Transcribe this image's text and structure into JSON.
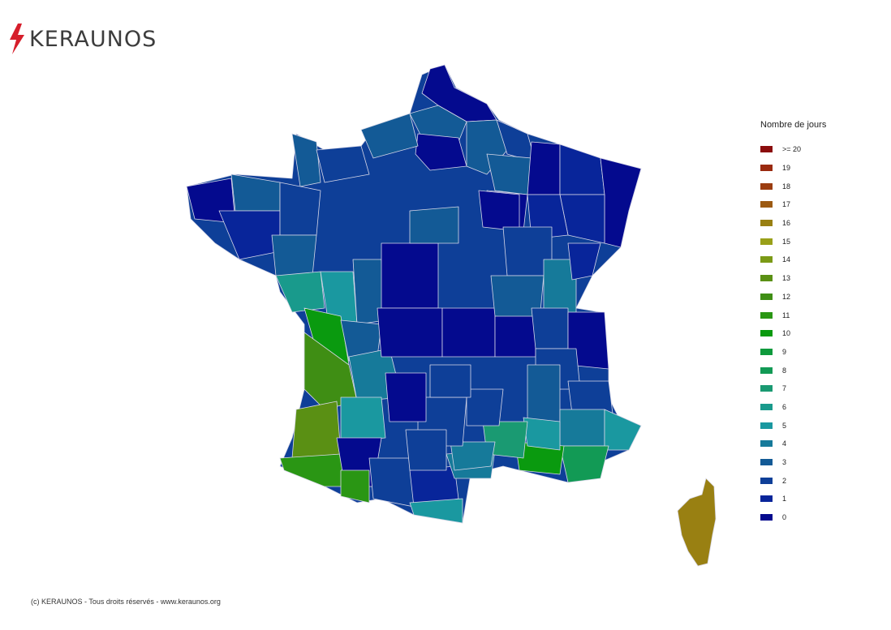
{
  "brand": {
    "name": "KERAUNOS",
    "accent": "#d61e2b"
  },
  "legend": {
    "title": "Nombre de jours",
    "items": [
      {
        "label": ">= 20",
        "color": "#8b0d0d"
      },
      {
        "label": "19",
        "color": "#9a2a0f"
      },
      {
        "label": "18",
        "color": "#9b3d10"
      },
      {
        "label": "17",
        "color": "#9c5a12"
      },
      {
        "label": "16",
        "color": "#998012"
      },
      {
        "label": "15",
        "color": "#99a019"
      },
      {
        "label": "14",
        "color": "#7b9a16"
      },
      {
        "label": "13",
        "color": "#5a9014"
      },
      {
        "label": "12",
        "color": "#3f8e14"
      },
      {
        "label": "11",
        "color": "#2a9614"
      },
      {
        "label": "10",
        "color": "#0a9a0f"
      },
      {
        "label": "9",
        "color": "#0e9a3c"
      },
      {
        "label": "8",
        "color": "#129a55"
      },
      {
        "label": "7",
        "color": "#1a9a72"
      },
      {
        "label": "6",
        "color": "#199a8c"
      },
      {
        "label": "5",
        "color": "#1a98a0"
      },
      {
        "label": "4",
        "color": "#167a9a"
      },
      {
        "label": "3",
        "color": "#135a96"
      },
      {
        "label": "2",
        "color": "#0e3f98"
      },
      {
        "label": "1",
        "color": "#08259a"
      },
      {
        "label": "0",
        "color": "#040a8e"
      }
    ]
  },
  "footer": {
    "copyright": "(c) KERAUNOS - Tous droits réservés - www.keraunos.org"
  }
}
